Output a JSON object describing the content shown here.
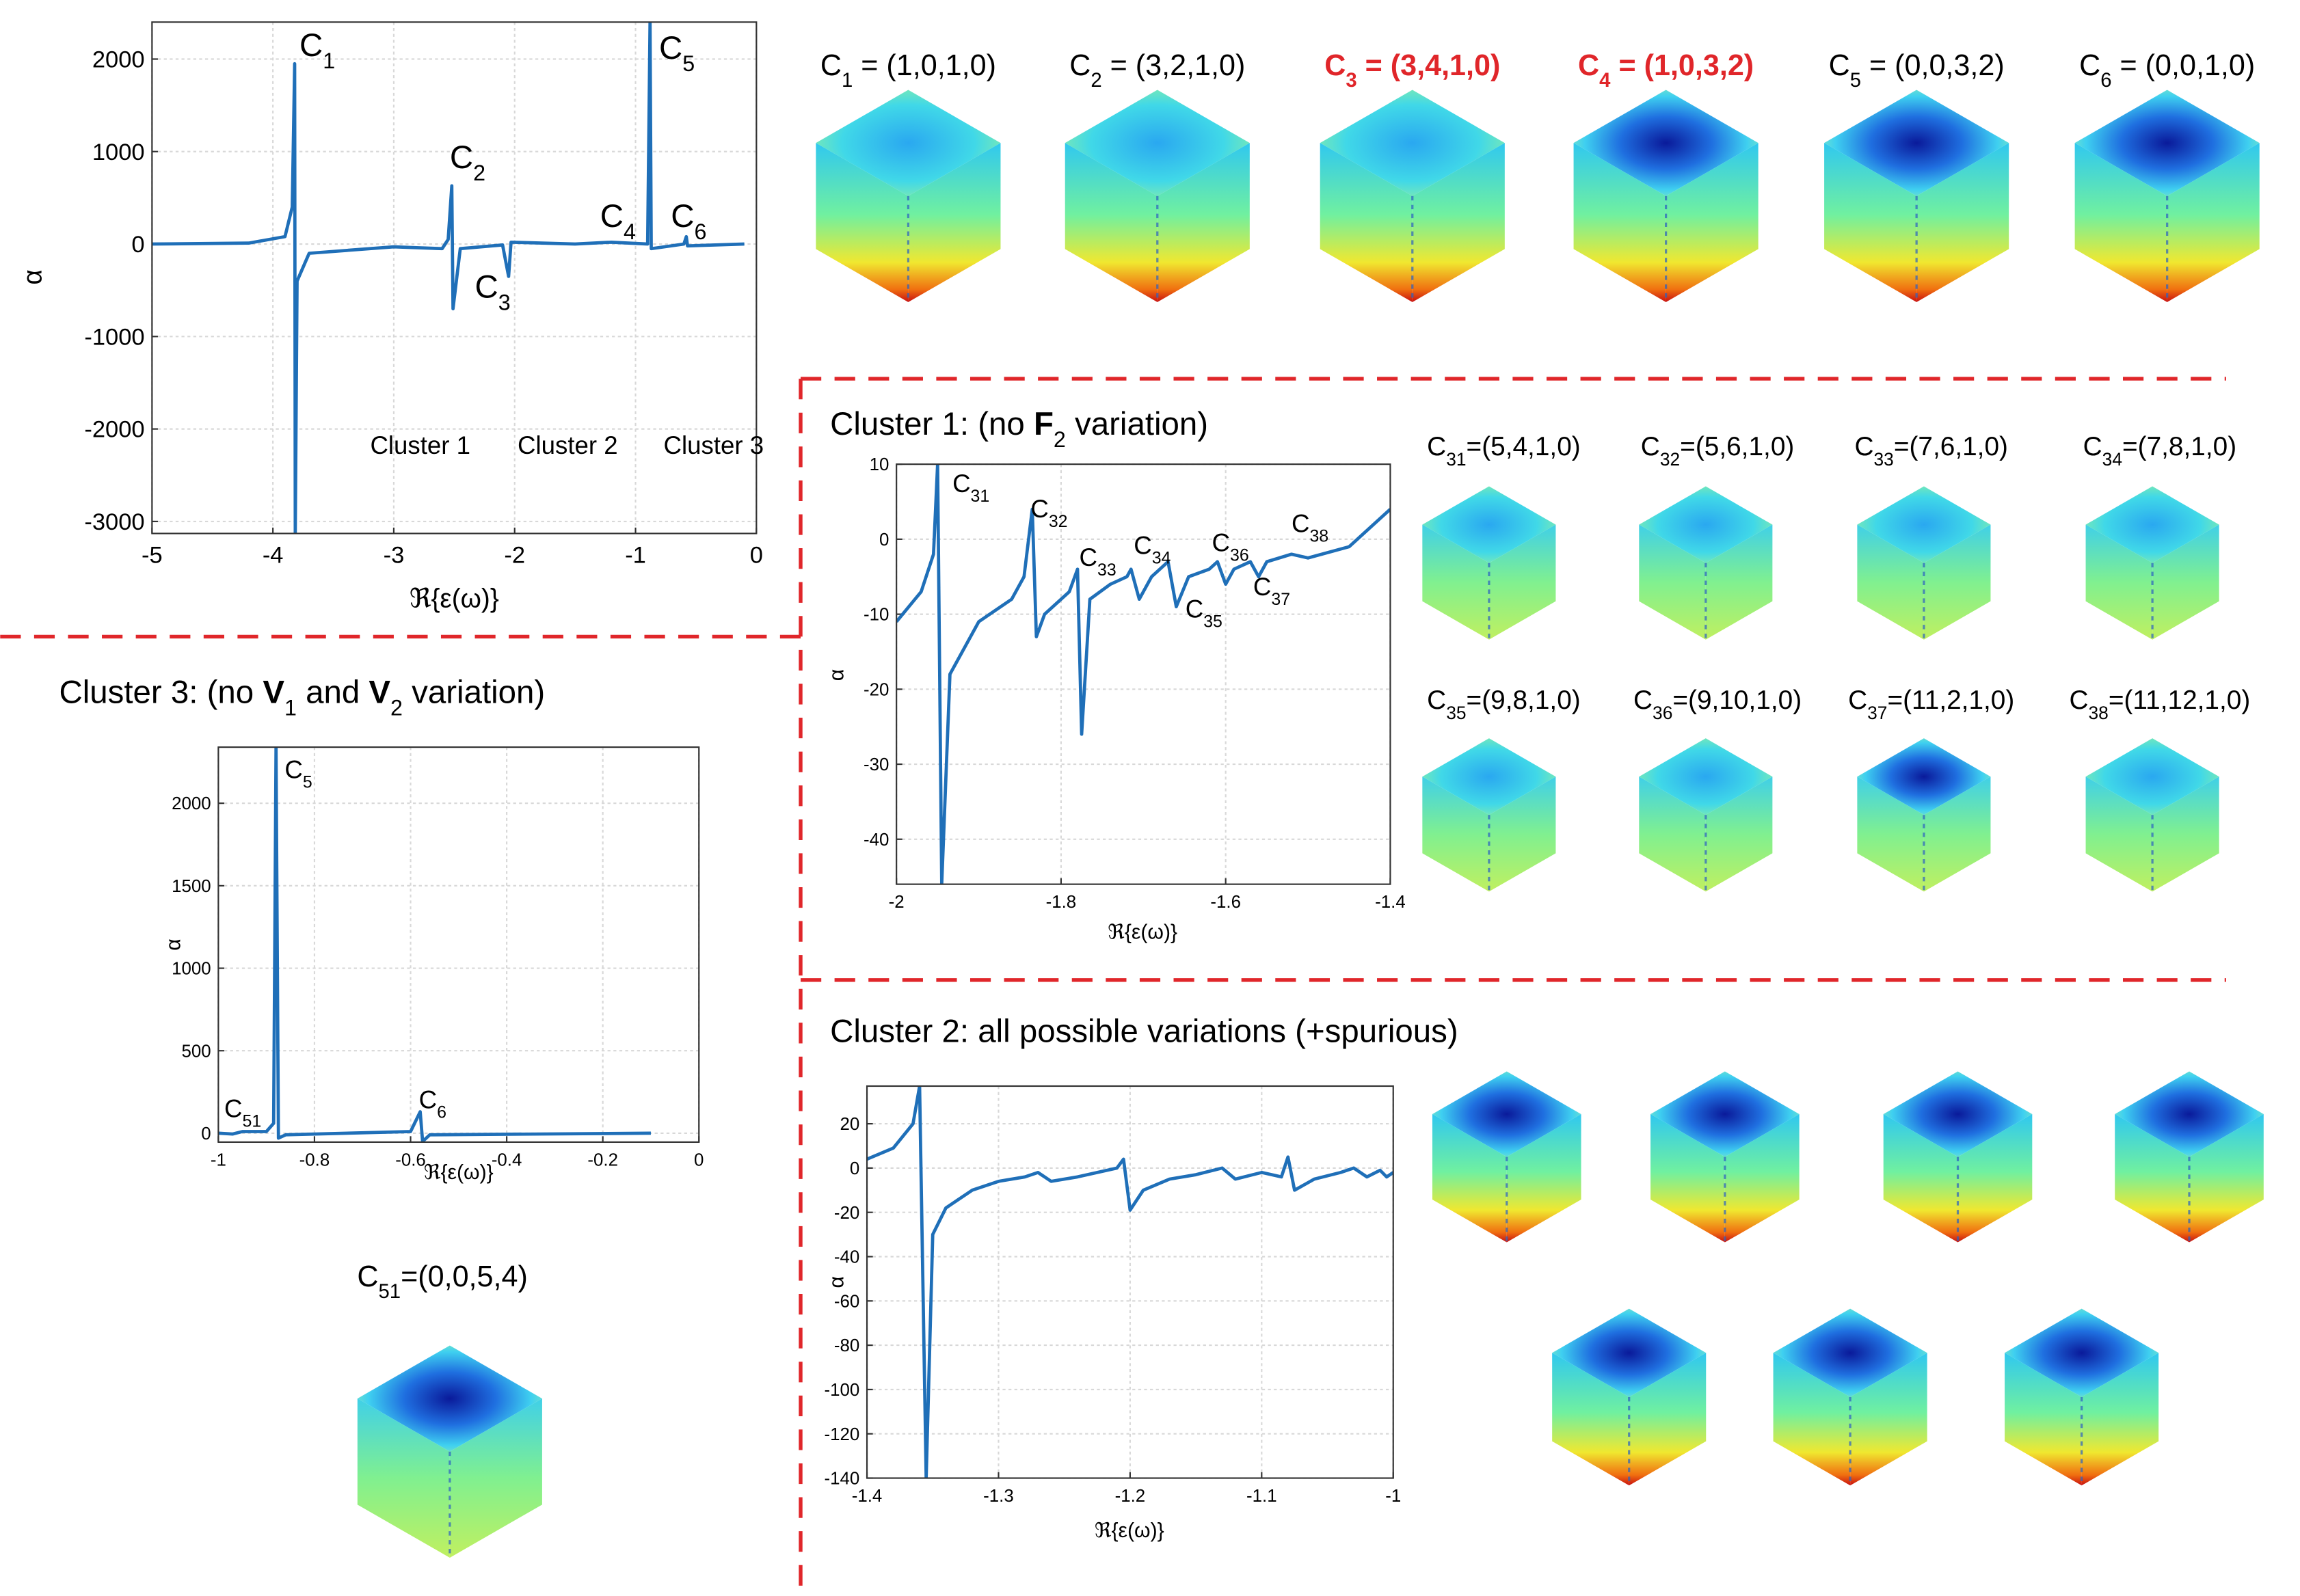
{
  "chart_data": [
    {
      "type": "line",
      "xlabel": "ℜ{ε(ω)}",
      "ylabel": "α",
      "xlim": [
        -5,
        0
      ],
      "ylim": [
        -3130,
        2400
      ],
      "xticks": [
        -5,
        -4,
        -3,
        -2,
        -1,
        0
      ],
      "yticks": [
        2000,
        1000,
        0,
        -1000,
        -2000,
        -3000
      ],
      "grid": true,
      "series": [
        {
          "color": "#1f6fb8",
          "x": [
            -5,
            -4.2,
            -3.9,
            -3.84,
            -3.82,
            -3.815,
            -3.8,
            -3.7,
            -3.0,
            -2.6,
            -2.55,
            -2.52,
            -2.51,
            -2.45,
            -2.1,
            -2.05,
            -2.03,
            -1.5,
            -1.2,
            -0.9,
            -0.88,
            -0.87,
            -0.6,
            -0.58,
            -0.57,
            -0.1
          ],
          "values": [
            0,
            10,
            80,
            400,
            1950,
            -3130,
            -400,
            -100,
            -30,
            -50,
            50,
            630,
            -700,
            -50,
            -10,
            -350,
            20,
            0,
            20,
            0,
            2400,
            -50,
            0,
            80,
            -20,
            0
          ]
        }
      ],
      "annotations": [
        {
          "parts": [
            {
              "text": "C"
            },
            {
              "text": "1",
              "style": "sub"
            }
          ]
        },
        {
          "parts": [
            {
              "text": "C"
            },
            {
              "text": "2",
              "style": "sub"
            }
          ]
        },
        {
          "parts": [
            {
              "text": "C"
            },
            {
              "text": "3",
              "style": "sub"
            }
          ]
        },
        {
          "parts": [
            {
              "text": "C"
            },
            {
              "text": "4",
              "style": "sub"
            }
          ]
        },
        {
          "parts": [
            {
              "text": "C"
            },
            {
              "text": "5",
              "style": "sub"
            }
          ]
        },
        {
          "parts": [
            {
              "text": "C"
            },
            {
              "text": "6",
              "style": "sub"
            }
          ]
        },
        {
          "parts": [
            {
              "text": "Cluster 1"
            }
          ]
        },
        {
          "parts": [
            {
              "text": "Cluster 2"
            }
          ]
        },
        {
          "parts": [
            {
              "text": "Cluster 3"
            }
          ]
        }
      ]
    },
    {
      "type": "line",
      "xlabel": "ℜ{ε(ω)}",
      "ylabel": "α",
      "xlim": [
        -2,
        -1.4
      ],
      "ylim": [
        -46,
        10
      ],
      "xticks": [
        -2,
        -1.8,
        -1.6,
        -1.4
      ],
      "yticks": [
        10,
        0,
        -10,
        -20,
        -30,
        -40
      ],
      "grid": true,
      "series": [
        {
          "color": "#1f6fb8",
          "x": [
            -2,
            -1.97,
            -1.955,
            -1.95,
            -1.945,
            -1.935,
            -1.9,
            -1.86,
            -1.845,
            -1.835,
            -1.83,
            -1.82,
            -1.79,
            -1.78,
            -1.775,
            -1.765,
            -1.74,
            -1.72,
            -1.715,
            -1.705,
            -1.69,
            -1.67,
            -1.66,
            -1.645,
            -1.62,
            -1.61,
            -1.6,
            -1.59,
            -1.57,
            -1.56,
            -1.55,
            -1.52,
            -1.5,
            -1.45,
            -1.4
          ],
          "values": [
            -11,
            -7,
            -2,
            10,
            -46,
            -18,
            -11,
            -8,
            -5,
            4,
            -13,
            -10,
            -7,
            -4,
            -26,
            -8,
            -6,
            -5,
            -4,
            -8,
            -5,
            -3,
            -9,
            -5,
            -4,
            -3,
            -6,
            -4,
            -3,
            -5,
            -3,
            -2,
            -2.5,
            -1,
            4
          ]
        }
      ],
      "annotations": [
        {
          "parts": [
            {
              "text": "C"
            },
            {
              "text": "31",
              "style": "sub"
            }
          ]
        },
        {
          "parts": [
            {
              "text": "C"
            },
            {
              "text": "32",
              "style": "sub"
            }
          ]
        },
        {
          "parts": [
            {
              "text": "C"
            },
            {
              "text": "33",
              "style": "sub"
            }
          ]
        },
        {
          "parts": [
            {
              "text": "C"
            },
            {
              "text": "34",
              "style": "sub"
            }
          ]
        },
        {
          "parts": [
            {
              "text": "C"
            },
            {
              "text": "35",
              "style": "sub"
            }
          ]
        },
        {
          "parts": [
            {
              "text": "C"
            },
            {
              "text": "36",
              "style": "sub"
            }
          ]
        },
        {
          "parts": [
            {
              "text": "C"
            },
            {
              "text": "37",
              "style": "sub"
            }
          ]
        },
        {
          "parts": [
            {
              "text": "C"
            },
            {
              "text": "38",
              "style": "sub"
            }
          ]
        }
      ]
    },
    {
      "type": "line",
      "xlabel": "ℜ{ε(ω)}",
      "ylabel": "α",
      "xlim": [
        -1,
        0
      ],
      "ylim": [
        -54,
        2340
      ],
      "xticks": [
        -1,
        -0.8,
        -0.6,
        -0.4,
        -0.2,
        0
      ],
      "yticks": [
        2000,
        1500,
        1000,
        500,
        0
      ],
      "grid": true,
      "series": [
        {
          "color": "#1f6fb8",
          "x": [
            -1,
            -0.97,
            -0.95,
            -0.9,
            -0.885,
            -0.88,
            -0.875,
            -0.86,
            -0.6,
            -0.58,
            -0.575,
            -0.56,
            -0.1
          ],
          "values": [
            0,
            -5,
            10,
            10,
            60,
            2340,
            -30,
            -10,
            10,
            130,
            -50,
            -10,
            0
          ]
        }
      ],
      "annotations": [
        {
          "parts": [
            {
              "text": "C"
            },
            {
              "text": "51",
              "style": "sub"
            }
          ]
        },
        {
          "parts": [
            {
              "text": "C"
            },
            {
              "text": "5",
              "style": "sub"
            }
          ]
        },
        {
          "parts": [
            {
              "text": "C"
            },
            {
              "text": "6",
              "style": "sub"
            }
          ]
        }
      ]
    },
    {
      "type": "line",
      "xlabel": "ℜ{ε(ω)}",
      "ylabel": "α",
      "xlim": [
        -1.4,
        -1
      ],
      "ylim": [
        -140,
        37
      ],
      "xticks": [
        -1.4,
        -1.3,
        -1.2,
        -1.1,
        -1
      ],
      "yticks": [
        20,
        0,
        -20,
        -40,
        -60,
        -80,
        -100,
        -120,
        -140
      ],
      "grid": true,
      "series": [
        {
          "color": "#1f6fb8",
          "x": [
            -1.4,
            -1.38,
            -1.365,
            -1.36,
            -1.355,
            -1.35,
            -1.34,
            -1.32,
            -1.3,
            -1.28,
            -1.27,
            -1.26,
            -1.24,
            -1.21,
            -1.205,
            -1.2,
            -1.19,
            -1.17,
            -1.15,
            -1.13,
            -1.12,
            -1.1,
            -1.085,
            -1.08,
            -1.075,
            -1.06,
            -1.04,
            -1.03,
            -1.02,
            -1.01,
            -1.005,
            -1
          ],
          "values": [
            4,
            9,
            20,
            37,
            -140,
            -30,
            -18,
            -10,
            -6,
            -4,
            -2,
            -6,
            -4,
            0,
            4,
            -19,
            -10,
            -5,
            -3,
            0,
            -5,
            -2,
            -4,
            5,
            -10,
            -5,
            -2,
            0,
            -4,
            -1,
            -4,
            -2
          ]
        }
      ],
      "annotations": []
    }
  ],
  "cube_labels": {
    "top": [
      {
        "parts": [
          {
            "text": "C"
          },
          {
            "text": "1",
            "style": "sub"
          },
          {
            "text": " = (1,0,1,0)"
          }
        ]
      },
      {
        "parts": [
          {
            "text": "C"
          },
          {
            "text": "2",
            "style": "sub"
          },
          {
            "text": " = (3,2,1,0)"
          }
        ]
      },
      {
        "parts": [
          {
            "text": "C"
          },
          {
            "text": "3",
            "style": "sub"
          },
          {
            "text": " = (3,4,1,0)"
          }
        ],
        "color": "#e0262a",
        "bold": true
      },
      {
        "parts": [
          {
            "text": "C"
          },
          {
            "text": "4",
            "style": "sub"
          },
          {
            "text": " = (1,0,3,2)"
          }
        ],
        "color": "#e0262a",
        "bold": true
      },
      {
        "parts": [
          {
            "text": "C"
          },
          {
            "text": "5",
            "style": "sub"
          },
          {
            "text": " = (0,0,3,2)"
          }
        ]
      },
      {
        "parts": [
          {
            "text": "C"
          },
          {
            "text": "6",
            "style": "sub"
          },
          {
            "text": " = (0,0,1,0)"
          }
        ]
      }
    ],
    "cluster1": [
      {
        "parts": [
          {
            "text": "C"
          },
          {
            "text": "31",
            "style": "sub"
          },
          {
            "text": "=(5,4,1,0)"
          }
        ]
      },
      {
        "parts": [
          {
            "text": "C"
          },
          {
            "text": "32",
            "style": "sub"
          },
          {
            "text": "=(5,6,1,0)"
          }
        ]
      },
      {
        "parts": [
          {
            "text": "C"
          },
          {
            "text": "33",
            "style": "sub"
          },
          {
            "text": "=(7,6,1,0)"
          }
        ]
      },
      {
        "parts": [
          {
            "text": "C"
          },
          {
            "text": "34",
            "style": "sub"
          },
          {
            "text": "=(7,8,1,0)"
          }
        ]
      },
      {
        "parts": [
          {
            "text": "C"
          },
          {
            "text": "35",
            "style": "sub"
          },
          {
            "text": "=(9,8,1,0)"
          }
        ]
      },
      {
        "parts": [
          {
            "text": "C"
          },
          {
            "text": "36",
            "style": "sub"
          },
          {
            "text": "=(9,10,1,0)"
          }
        ]
      },
      {
        "parts": [
          {
            "text": "C"
          },
          {
            "text": "37",
            "style": "sub"
          },
          {
            "text": "=(11,2,1,0)"
          }
        ]
      },
      {
        "parts": [
          {
            "text": "C"
          },
          {
            "text": "38",
            "style": "sub"
          },
          {
            "text": "=(11,12,1,0)"
          }
        ]
      }
    ],
    "cluster3": [
      {
        "parts": [
          {
            "text": "C"
          },
          {
            "text": "51",
            "style": "sub"
          },
          {
            "text": "=(0,0,5,4)"
          }
        ]
      }
    ]
  },
  "sections": [
    {
      "parts": [
        {
          "text": "Cluster 1: (no "
        },
        {
          "text": "F",
          "style": "bold"
        },
        {
          "text": "2",
          "style": "sub"
        },
        {
          "text": " variation)"
        }
      ]
    },
    {
      "parts": [
        {
          "text": "Cluster 3: (no "
        },
        {
          "text": "V",
          "style": "bold"
        },
        {
          "text": "1",
          "style": "sub"
        },
        {
          "text": " and "
        },
        {
          "text": "V",
          "style": "bold"
        },
        {
          "text": "2",
          "style": "sub"
        },
        {
          "text": " variation)"
        }
      ]
    },
    {
      "parts": [
        {
          "text": "Cluster 2: all possible variations (+spurious)"
        }
      ]
    }
  ]
}
